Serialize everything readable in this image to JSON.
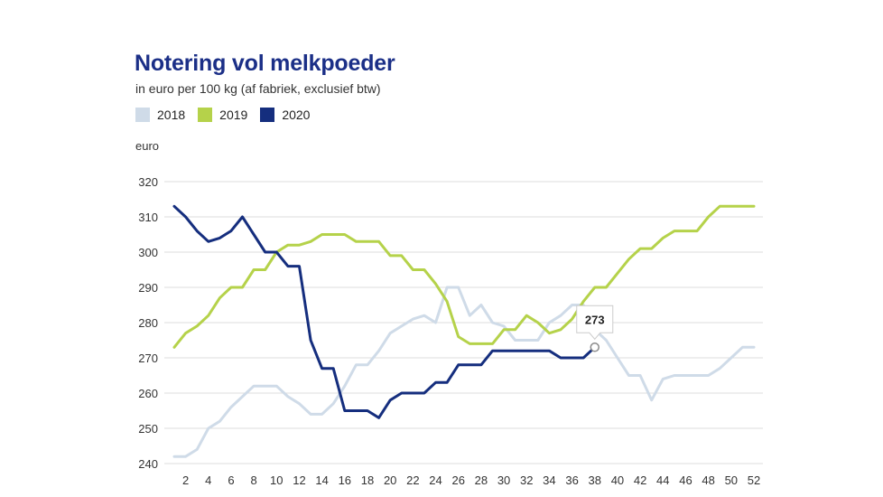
{
  "chart_data": {
    "type": "line",
    "title": "Notering vol melkpoeder",
    "subtitle": "in euro per 100 kg (af fabriek, exclusief btw)",
    "ylabel": "euro",
    "xlabel": "",
    "xlim": [
      1,
      52
    ],
    "ylim": [
      240,
      320
    ],
    "x_ticks": [
      2,
      4,
      6,
      8,
      10,
      12,
      14,
      16,
      18,
      20,
      22,
      24,
      26,
      28,
      30,
      32,
      34,
      36,
      38,
      40,
      42,
      44,
      46,
      48,
      50,
      52
    ],
    "y_ticks": [
      240,
      250,
      260,
      270,
      280,
      290,
      300,
      310,
      320
    ],
    "grid": true,
    "legend_position": "top-left",
    "series": [
      {
        "name": "2018",
        "color": "#cfdbe8",
        "x": [
          1,
          2,
          3,
          4,
          5,
          6,
          7,
          8,
          9,
          10,
          11,
          12,
          13,
          14,
          15,
          16,
          17,
          18,
          19,
          20,
          21,
          22,
          23,
          24,
          25,
          26,
          27,
          28,
          29,
          30,
          31,
          32,
          33,
          34,
          35,
          36,
          37,
          38,
          39,
          40,
          41,
          42,
          43,
          44,
          45,
          46,
          47,
          48,
          49,
          50,
          51,
          52
        ],
        "values": [
          242,
          242,
          244,
          250,
          252,
          256,
          259,
          262,
          262,
          262,
          259,
          257,
          254,
          254,
          257,
          262,
          268,
          268,
          272,
          277,
          279,
          281,
          282,
          280,
          290,
          290,
          282,
          285,
          280,
          279,
          275,
          275,
          275,
          280,
          282,
          285,
          285,
          278,
          275,
          270,
          265,
          265,
          258,
          264,
          265,
          265,
          265,
          265,
          267,
          270,
          273,
          273
        ]
      },
      {
        "name": "2019",
        "color": "#b5d24a",
        "x": [
          1,
          2,
          3,
          4,
          5,
          6,
          7,
          8,
          9,
          10,
          11,
          12,
          13,
          14,
          15,
          16,
          17,
          18,
          19,
          20,
          21,
          22,
          23,
          24,
          25,
          26,
          27,
          28,
          29,
          30,
          31,
          32,
          33,
          34,
          35,
          36,
          37,
          38,
          39,
          40,
          41,
          42,
          43,
          44,
          45,
          46,
          47,
          48,
          49,
          50,
          51,
          52
        ],
        "values": [
          273,
          277,
          279,
          282,
          287,
          290,
          290,
          295,
          295,
          300,
          302,
          302,
          303,
          305,
          305,
          305,
          303,
          303,
          303,
          299,
          299,
          295,
          295,
          291,
          286,
          276,
          274,
          274,
          274,
          278,
          278,
          282,
          280,
          277,
          278,
          281,
          286,
          290,
          290,
          294,
          298,
          301,
          301,
          304,
          306,
          306,
          306,
          310,
          313,
          313,
          313,
          313
        ]
      },
      {
        "name": "2020",
        "color": "#152e7e",
        "x": [
          1,
          2,
          3,
          4,
          5,
          6,
          7,
          8,
          9,
          10,
          11,
          12,
          13,
          14,
          15,
          16,
          17,
          18,
          19,
          20,
          21,
          22,
          23,
          24,
          25,
          26,
          27,
          28,
          29,
          30,
          31,
          32,
          33,
          34,
          35,
          36,
          37,
          38
        ],
        "values": [
          313,
          310,
          306,
          303,
          304,
          306,
          310,
          305,
          300,
          300,
          296,
          296,
          275,
          267,
          267,
          255,
          255,
          255,
          253,
          258,
          260,
          260,
          260,
          263,
          263,
          268,
          268,
          268,
          272,
          272,
          272,
          272,
          272,
          272,
          270,
          270,
          270,
          273
        ]
      }
    ],
    "tooltip": {
      "series": "2020",
      "x": 38,
      "value": "273"
    }
  }
}
